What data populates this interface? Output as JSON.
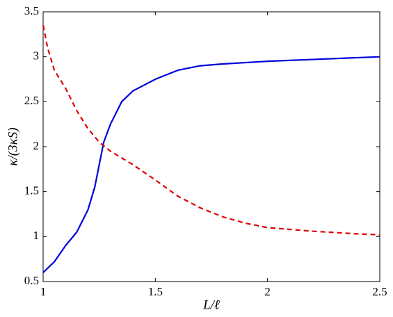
{
  "chart_data": {
    "type": "line",
    "xlabel": "L/ℓ",
    "ylabel": "κ/(3κS)",
    "xlim": [
      1,
      2.5
    ],
    "xticks": [
      1,
      1.5,
      2,
      2.5
    ],
    "ylim": [
      0.5,
      3.5
    ],
    "yticks": [
      0.5,
      1,
      1.5,
      2,
      2.5,
      3,
      3.5
    ],
    "series": [
      {
        "color": "#0000dd",
        "style": "solid",
        "x": [
          1.0,
          1.05,
          1.1,
          1.15,
          1.2,
          1.23,
          1.25,
          1.27,
          1.3,
          1.35,
          1.4,
          1.5,
          1.6,
          1.7,
          1.8,
          2.0,
          2.2,
          2.5
        ],
        "values": [
          0.6,
          0.72,
          0.9,
          1.05,
          1.3,
          1.55,
          1.8,
          2.05,
          2.25,
          2.5,
          2.62,
          2.75,
          2.85,
          2.9,
          2.92,
          2.95,
          2.97,
          3.0
        ]
      },
      {
        "color": "#dd0000",
        "style": "dashed",
        "x": [
          1.0,
          1.02,
          1.05,
          1.1,
          1.15,
          1.2,
          1.25,
          1.3,
          1.4,
          1.5,
          1.6,
          1.7,
          1.8,
          1.9,
          2.0,
          2.2,
          2.4,
          2.5
        ],
        "values": [
          3.35,
          3.1,
          2.85,
          2.65,
          2.4,
          2.2,
          2.05,
          1.95,
          1.8,
          1.63,
          1.45,
          1.32,
          1.22,
          1.15,
          1.1,
          1.06,
          1.03,
          1.02
        ]
      }
    ]
  }
}
